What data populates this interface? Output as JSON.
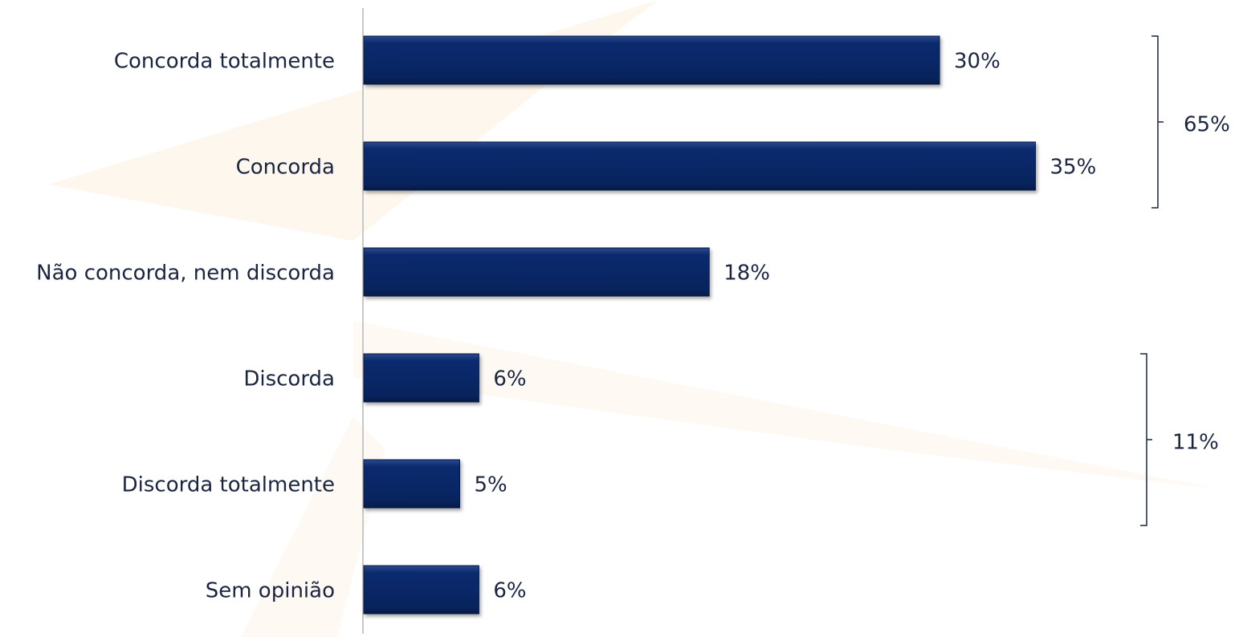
{
  "chart_data": {
    "type": "bar",
    "orientation": "horizontal",
    "categories": [
      "Concorda totalmente",
      "Concorda",
      "Não concorda, nem discorda",
      "Discorda",
      "Discorda totalmente",
      "Sem opinião"
    ],
    "values": [
      30,
      35,
      18,
      6,
      5,
      6
    ],
    "value_labels": [
      "30%",
      "35%",
      "18%",
      "6%",
      "5%",
      "6%"
    ],
    "color": "#0b2a6e",
    "annotations": [
      {
        "label": "65%",
        "value": 65,
        "categories": [
          "Concorda totalmente",
          "Concorda"
        ]
      },
      {
        "label": "11%",
        "value": 11,
        "categories": [
          "Discorda",
          "Discorda totalmente"
        ]
      }
    ]
  }
}
